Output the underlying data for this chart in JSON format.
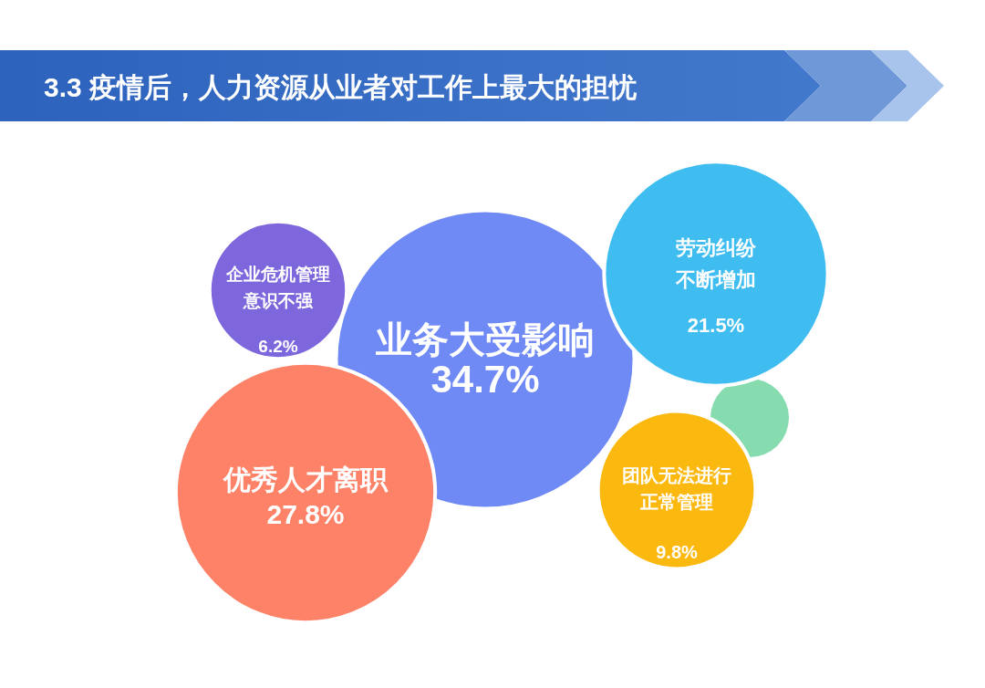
{
  "chart_data": {
    "type": "other",
    "title": "3.3 疫情后，人力资源从业者对工作上最大的担忧",
    "categories": [
      "业务大受影响",
      "优秀人才离职",
      "劳动纠纷不断增加",
      "团队无法进行正常管理",
      "企业危机管理意识不强"
    ],
    "values": [
      34.7,
      27.8,
      21.5,
      9.8,
      6.2
    ],
    "value_labels": [
      "34.7%",
      "27.8%",
      "21.5%",
      "9.8%",
      "6.2%"
    ],
    "colors": [
      "#6f8af5",
      "#fd8268",
      "#3fbdf0",
      "#fbb80f",
      "#7e67dc"
    ]
  }
}
